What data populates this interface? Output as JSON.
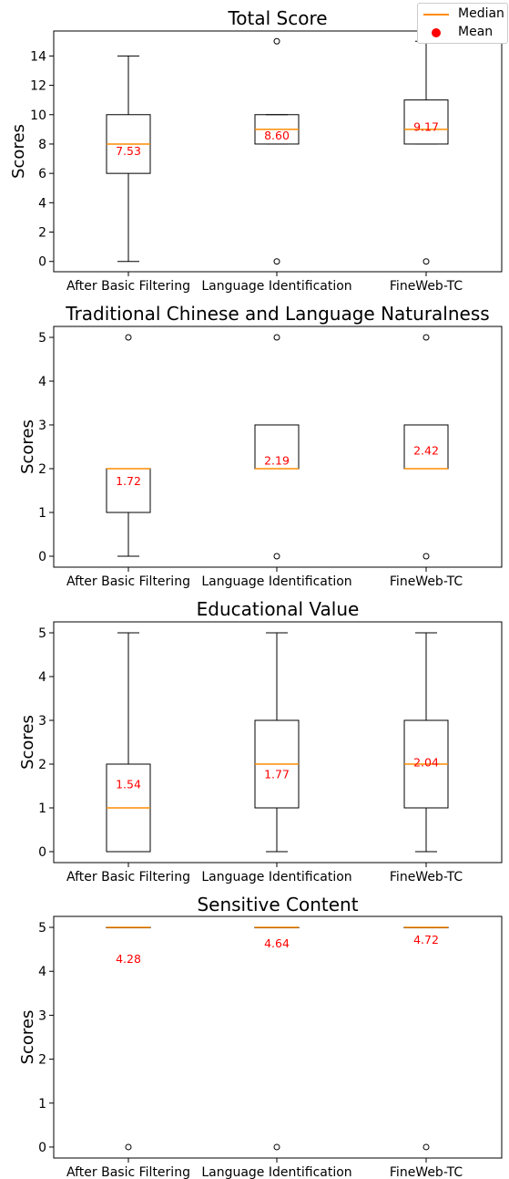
{
  "legend": {
    "median_label": "Median",
    "mean_label": "Mean",
    "median_color": "#ff8c00",
    "mean_color": "#ff0000"
  },
  "chart_data": [
    {
      "type": "box",
      "title": "Total Score",
      "ylabel": "Scores",
      "ylim": [
        -0.7,
        15.7
      ],
      "yticks": [
        0,
        2,
        4,
        6,
        8,
        10,
        12,
        14
      ],
      "categories": [
        "After Basic Filtering",
        "Language Identification",
        "FineWeb-TC"
      ],
      "boxes": [
        {
          "whisker_low": 0,
          "q1": 6,
          "median": 8,
          "q3": 10,
          "whisker_high": 14,
          "mean": 7.53,
          "mean_label": "7.53",
          "outliers": []
        },
        {
          "whisker_low": 8,
          "q1": 8,
          "median": 9,
          "q3": 10,
          "whisker_high": 10,
          "mean": 8.6,
          "mean_label": "8.60",
          "outliers": [
            0,
            15
          ]
        },
        {
          "whisker_low": 8,
          "q1": 8,
          "median": 9,
          "q3": 11,
          "whisker_high": 15,
          "mean": 9.17,
          "mean_label": "9.17",
          "outliers": [
            0
          ]
        }
      ]
    },
    {
      "type": "box",
      "title": "Traditional Chinese and Language Naturalness",
      "ylabel": "Scores",
      "ylim": [
        -0.25,
        5.25
      ],
      "yticks": [
        0,
        1,
        2,
        3,
        4,
        5
      ],
      "categories": [
        "After Basic Filtering",
        "Language Identification",
        "FineWeb-TC"
      ],
      "boxes": [
        {
          "whisker_low": 0,
          "q1": 1,
          "median": 2,
          "q3": 2,
          "whisker_high": 2,
          "mean": 1.72,
          "mean_label": "1.72",
          "outliers": [
            5
          ]
        },
        {
          "whisker_low": 2,
          "q1": 2,
          "median": 2,
          "q3": 3,
          "whisker_high": 3,
          "mean": 2.19,
          "mean_label": "2.19",
          "outliers": [
            0,
            5
          ]
        },
        {
          "whisker_low": 2,
          "q1": 2,
          "median": 2,
          "q3": 3,
          "whisker_high": 3,
          "mean": 2.42,
          "mean_label": "2.42",
          "outliers": [
            0,
            5
          ]
        }
      ]
    },
    {
      "type": "box",
      "title": "Educational Value",
      "ylabel": "Scores",
      "ylim": [
        -0.25,
        5.25
      ],
      "yticks": [
        0,
        1,
        2,
        3,
        4,
        5
      ],
      "categories": [
        "After Basic Filtering",
        "Language Identification",
        "FineWeb-TC"
      ],
      "boxes": [
        {
          "whisker_low": 0,
          "q1": 0,
          "median": 1,
          "q3": 2,
          "whisker_high": 5,
          "mean": 1.54,
          "mean_label": "1.54",
          "outliers": []
        },
        {
          "whisker_low": 0,
          "q1": 1,
          "median": 2,
          "q3": 3,
          "whisker_high": 5,
          "mean": 1.77,
          "mean_label": "1.77",
          "outliers": []
        },
        {
          "whisker_low": 0,
          "q1": 1,
          "median": 2,
          "q3": 3,
          "whisker_high": 5,
          "mean": 2.04,
          "mean_label": "2.04",
          "outliers": []
        }
      ]
    },
    {
      "type": "box",
      "title": "Sensitive Content",
      "ylabel": "Scores",
      "ylim": [
        -0.25,
        5.25
      ],
      "yticks": [
        0,
        1,
        2,
        3,
        4,
        5
      ],
      "categories": [
        "After Basic Filtering",
        "Language Identification",
        "FineWeb-TC"
      ],
      "boxes": [
        {
          "whisker_low": 5,
          "q1": 5,
          "median": 5,
          "q3": 5,
          "whisker_high": 5,
          "mean": 4.28,
          "mean_label": "4.28",
          "outliers": [
            0
          ]
        },
        {
          "whisker_low": 5,
          "q1": 5,
          "median": 5,
          "q3": 5,
          "whisker_high": 5,
          "mean": 4.64,
          "mean_label": "4.64",
          "outliers": [
            0
          ]
        },
        {
          "whisker_low": 5,
          "q1": 5,
          "median": 5,
          "q3": 5,
          "whisker_high": 5,
          "mean": 4.72,
          "mean_label": "4.72",
          "outliers": [
            0
          ]
        }
      ]
    }
  ]
}
